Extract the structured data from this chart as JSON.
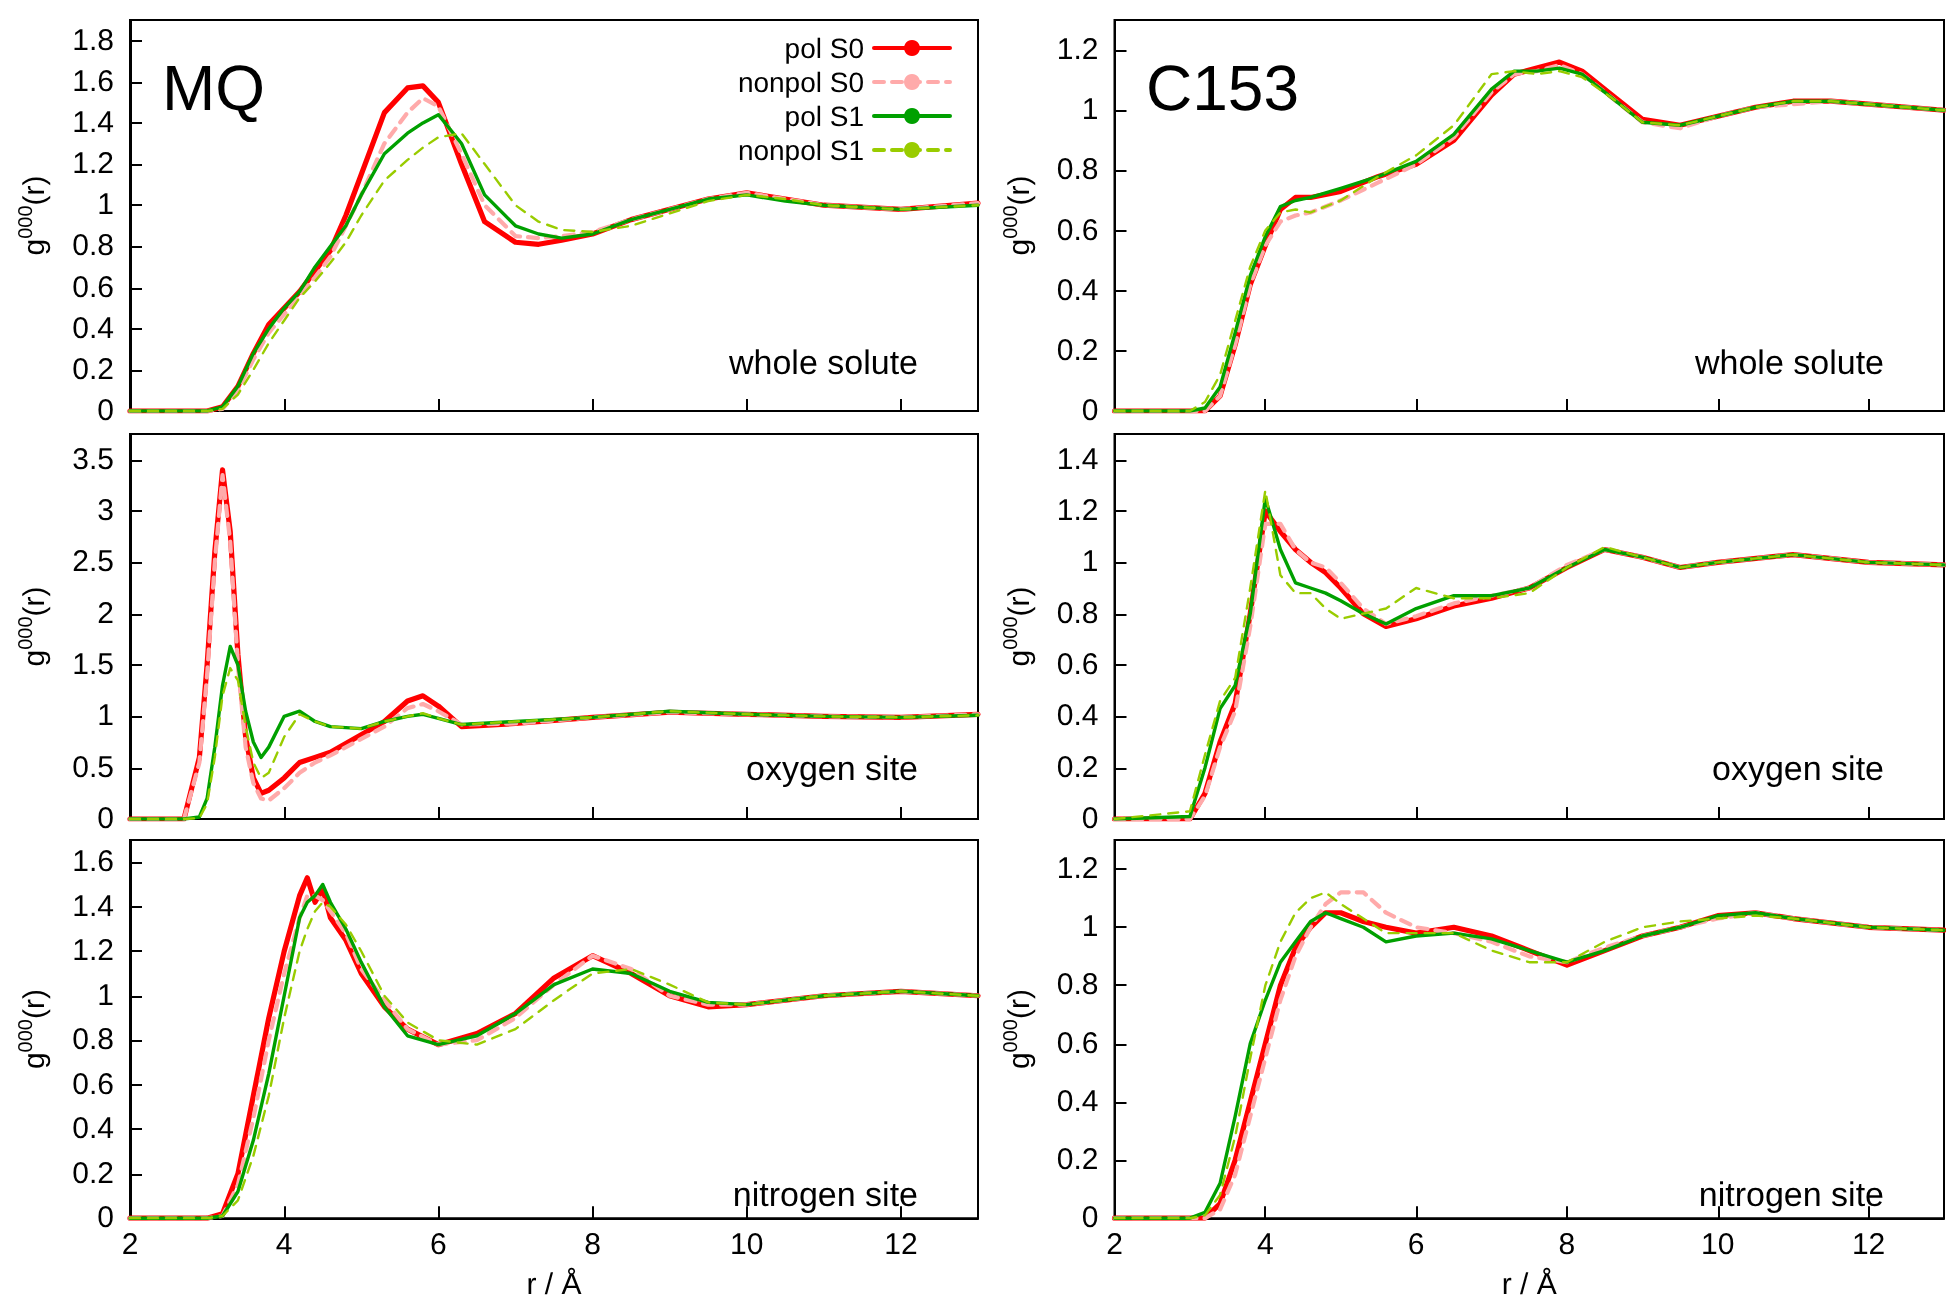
{
  "chart_data": [
    {
      "type": "line",
      "title": "MQ",
      "annotations": [
        "whole solute"
      ],
      "ylabel": "g$^{000}$(r)",
      "tick_labels": "y",
      "legend": "top right",
      "xlim": [
        2,
        13
      ],
      "xticks": [
        2,
        4,
        6,
        8,
        10,
        12
      ],
      "ylim": [
        0,
        1.9
      ],
      "yticks": [
        0,
        0.2,
        0.4,
        0.6,
        0.8,
        1,
        1.2,
        1.4,
        1.6,
        1.8
      ],
      "x": [
        2,
        3,
        3.2,
        3.4,
        3.6,
        3.8,
        4,
        4.2,
        4.4,
        4.6,
        4.8,
        5,
        5.3,
        5.6,
        5.8,
        6,
        6.3,
        6.6,
        7,
        7.3,
        7.6,
        8,
        8.5,
        9,
        9.5,
        10,
        10.5,
        11,
        12,
        13
      ],
      "series": [
        {
          "name": "pol S0",
          "color": "#ff0000",
          "line_style": "solid",
          "values": [
            0,
            0,
            0.02,
            0.12,
            0.28,
            0.42,
            0.5,
            0.58,
            0.68,
            0.78,
            0.95,
            1.15,
            1.45,
            1.57,
            1.58,
            1.5,
            1.2,
            0.92,
            0.82,
            0.81,
            0.83,
            0.86,
            0.93,
            0.98,
            1.03,
            1.06,
            1.03,
            1,
            0.98,
            1.01
          ]
        },
        {
          "name": "nonpol S0",
          "color": "#ffaaaa",
          "line_style": "dashed",
          "values": [
            0,
            0,
            0.01,
            0.1,
            0.25,
            0.38,
            0.47,
            0.56,
            0.65,
            0.75,
            0.9,
            1.05,
            1.3,
            1.45,
            1.52,
            1.48,
            1.25,
            1,
            0.85,
            0.84,
            0.85,
            0.87,
            0.93,
            0.98,
            1.03,
            1.06,
            1.03,
            1,
            0.98,
            1.01
          ]
        },
        {
          "name": "pol S1",
          "color": "#00a000",
          "line_style": "solid",
          "values": [
            0,
            0,
            0.02,
            0.12,
            0.28,
            0.4,
            0.5,
            0.58,
            0.7,
            0.8,
            0.9,
            1.05,
            1.25,
            1.35,
            1.4,
            1.44,
            1.3,
            1.05,
            0.9,
            0.86,
            0.84,
            0.86,
            0.93,
            0.98,
            1.03,
            1.05,
            1.02,
            1,
            0.98,
            1
          ]
        },
        {
          "name": "nonpol S1",
          "color": "#99cc00",
          "line_style": "dashed",
          "values": [
            0,
            0,
            0.01,
            0.08,
            0.2,
            0.33,
            0.44,
            0.55,
            0.63,
            0.72,
            0.82,
            0.95,
            1.12,
            1.22,
            1.28,
            1.33,
            1.35,
            1.2,
            1,
            0.92,
            0.88,
            0.87,
            0.9,
            0.96,
            1.02,
            1.05,
            1.03,
            1,
            0.98,
            1
          ]
        }
      ]
    },
    {
      "type": "line",
      "title": "C153",
      "annotations": [
        "whole solute"
      ],
      "ylabel": "g$^{000}$(r)",
      "tick_labels": "y",
      "xlim": [
        2,
        13
      ],
      "xticks": [
        2,
        4,
        6,
        8,
        10,
        12
      ],
      "ylim": [
        0,
        1.3
      ],
      "yticks": [
        0,
        0.2,
        0.4,
        0.6,
        0.8,
        1,
        1.2
      ],
      "x": [
        2,
        3,
        3.2,
        3.4,
        3.6,
        3.8,
        4,
        4.2,
        4.4,
        4.6,
        5,
        5.5,
        6,
        6.5,
        7,
        7.3,
        7.6,
        7.9,
        8.2,
        8.6,
        9,
        9.5,
        10,
        10.5,
        11,
        11.5,
        12,
        13
      ],
      "series": [
        {
          "color": "#ff0000",
          "line_style": "solid",
          "values": [
            0,
            0,
            0,
            0.05,
            0.22,
            0.42,
            0.55,
            0.67,
            0.71,
            0.71,
            0.73,
            0.78,
            0.82,
            0.9,
            1.05,
            1.12,
            1.14,
            1.16,
            1.13,
            1.05,
            0.97,
            0.95,
            0.98,
            1.01,
            1.03,
            1.03,
            1.02,
            1
          ]
        },
        {
          "color": "#ffaaaa",
          "line_style": "dashed",
          "values": [
            0,
            0,
            0,
            0.05,
            0.22,
            0.42,
            0.55,
            0.63,
            0.65,
            0.66,
            0.7,
            0.76,
            0.82,
            0.91,
            1.06,
            1.12,
            1.13,
            1.15,
            1.12,
            1.04,
            0.96,
            0.94,
            0.98,
            1.01,
            1.02,
            1.03,
            1.02,
            1
          ]
        },
        {
          "color": "#00a000",
          "line_style": "solid",
          "values": [
            0,
            0,
            0.01,
            0.08,
            0.26,
            0.45,
            0.58,
            0.68,
            0.7,
            0.71,
            0.74,
            0.78,
            0.83,
            0.92,
            1.07,
            1.13,
            1.13,
            1.14,
            1.12,
            1.04,
            0.96,
            0.95,
            0.98,
            1.01,
            1.03,
            1.03,
            1.02,
            1
          ]
        },
        {
          "color": "#99cc00",
          "line_style": "dashed",
          "values": [
            0,
            0,
            0.03,
            0.12,
            0.3,
            0.48,
            0.6,
            0.66,
            0.67,
            0.66,
            0.7,
            0.78,
            0.85,
            0.95,
            1.12,
            1.13,
            1.12,
            1.13,
            1.11,
            1.04,
            0.96,
            0.95,
            0.98,
            1.01,
            1.03,
            1.03,
            1.02,
            1
          ]
        }
      ]
    },
    {
      "type": "line",
      "annotations": [
        "oxygen site"
      ],
      "ylabel": "g$^{000}$(r)",
      "tick_labels": "y",
      "xlim": [
        2,
        13
      ],
      "xticks": [
        2,
        4,
        6,
        8,
        10,
        12
      ],
      "ylim": [
        0,
        3.75
      ],
      "yticks": [
        0,
        0.5,
        1,
        1.5,
        2,
        2.5,
        3,
        3.5
      ],
      "x": [
        2,
        2.7,
        2.9,
        3,
        3.1,
        3.2,
        3.3,
        3.4,
        3.5,
        3.6,
        3.7,
        3.8,
        4,
        4.2,
        4.4,
        4.6,
        5,
        5.3,
        5.6,
        5.8,
        6,
        6.3,
        7,
        8,
        9,
        10,
        11,
        12,
        13
      ],
      "series": [
        {
          "color": "#ff0000",
          "line_style": "solid",
          "values": [
            0,
            0,
            0.6,
            1.5,
            2.6,
            3.4,
            2.8,
            1.6,
            0.8,
            0.4,
            0.25,
            0.28,
            0.4,
            0.55,
            0.6,
            0.65,
            0.82,
            0.95,
            1.15,
            1.2,
            1.1,
            0.9,
            0.93,
            0.99,
            1.04,
            1.02,
            1,
            0.99,
            1.02
          ]
        },
        {
          "color": "#ffaaaa",
          "line_style": "dashed",
          "values": [
            0,
            0,
            0.55,
            1.4,
            2.5,
            3.35,
            2.7,
            1.5,
            0.7,
            0.35,
            0.2,
            0.18,
            0.3,
            0.45,
            0.55,
            0.62,
            0.78,
            0.9,
            1.08,
            1.12,
            1.05,
            0.92,
            0.93,
            0.99,
            1.04,
            1.02,
            1,
            0.99,
            1.02
          ]
        },
        {
          "color": "#00a000",
          "line_style": "solid",
          "values": [
            0,
            0,
            0.02,
            0.2,
            0.7,
            1.3,
            1.68,
            1.5,
            1.05,
            0.75,
            0.6,
            0.7,
            1,
            1.05,
            0.95,
            0.9,
            0.88,
            0.95,
            1,
            1.02,
            0.98,
            0.92,
            0.95,
            0.99,
            1.05,
            1.02,
            1,
            0.99,
            1.01
          ]
        },
        {
          "color": "#99cc00",
          "line_style": "dashed",
          "values": [
            0,
            0,
            0.01,
            0.15,
            0.6,
            1.2,
            1.47,
            1.35,
            0.9,
            0.55,
            0.4,
            0.45,
            0.8,
            1.02,
            0.95,
            0.9,
            0.88,
            0.95,
            1,
            1.03,
            0.98,
            0.92,
            0.95,
            0.99,
            1.05,
            1.02,
            1,
            0.99,
            1.01
          ]
        }
      ]
    },
    {
      "type": "line",
      "annotations": [
        "oxygen site"
      ],
      "ylabel": "g$^{000}$(r)",
      "tick_labels": "y",
      "xlim": [
        2,
        13
      ],
      "xticks": [
        2,
        4,
        6,
        8,
        10,
        12
      ],
      "ylim": [
        0,
        1.5
      ],
      "yticks": [
        0,
        0.2,
        0.4,
        0.6,
        0.8,
        1,
        1.2,
        1.4
      ],
      "x": [
        2,
        3,
        3.2,
        3.4,
        3.6,
        3.8,
        4,
        4.2,
        4.4,
        4.6,
        4.8,
        5,
        5.3,
        5.6,
        6,
        6.5,
        7,
        7.5,
        8,
        8.5,
        9,
        9.5,
        10,
        11,
        12,
        13
      ],
      "series": [
        {
          "color": "#ff0000",
          "line_style": "solid",
          "values": [
            0,
            0,
            0.1,
            0.3,
            0.45,
            0.8,
            1.2,
            1.12,
            1.05,
            1,
            0.96,
            0.9,
            0.8,
            0.75,
            0.78,
            0.83,
            0.86,
            0.9,
            0.98,
            1.05,
            1.02,
            0.98,
            1,
            1.03,
            1,
            0.99
          ]
        },
        {
          "color": "#ffaaaa",
          "line_style": "dashed",
          "values": [
            0,
            0,
            0.09,
            0.28,
            0.42,
            0.75,
            1.15,
            1.15,
            1.05,
            1,
            0.98,
            0.92,
            0.82,
            0.76,
            0.79,
            0.84,
            0.87,
            0.9,
            0.99,
            1.05,
            1.02,
            0.98,
            1,
            1.03,
            1,
            0.99
          ]
        },
        {
          "color": "#00a000",
          "line_style": "solid",
          "values": [
            0,
            0.01,
            0.2,
            0.43,
            0.52,
            0.8,
            1.25,
            1.05,
            0.92,
            0.9,
            0.88,
            0.85,
            0.8,
            0.76,
            0.82,
            0.87,
            0.87,
            0.9,
            0.98,
            1.05,
            1.02,
            0.98,
            1,
            1.03,
            1,
            0.99
          ]
        },
        {
          "color": "#99cc00",
          "line_style": "dashed",
          "values": [
            0,
            0.03,
            0.25,
            0.46,
            0.55,
            0.9,
            1.28,
            0.95,
            0.88,
            0.88,
            0.82,
            0.78,
            0.8,
            0.82,
            0.9,
            0.86,
            0.86,
            0.88,
            0.98,
            1.06,
            1.02,
            0.98,
            1,
            1.03,
            1,
            0.99
          ]
        }
      ]
    },
    {
      "type": "line",
      "annotations": [
        "nitrogen site"
      ],
      "ylabel": "g$^{000}$(r)",
      "xlabel": "r / Å",
      "xlim": [
        2,
        13
      ],
      "xticks": [
        2,
        4,
        6,
        8,
        10,
        12
      ],
      "ylim": [
        0,
        1.7
      ],
      "yticks": [
        0,
        0.2,
        0.4,
        0.6,
        0.8,
        1,
        1.2,
        1.4,
        1.6
      ],
      "x": [
        2,
        3,
        3.2,
        3.4,
        3.6,
        3.8,
        4,
        4.2,
        4.3,
        4.4,
        4.5,
        4.6,
        4.8,
        5,
        5.3,
        5.6,
        6,
        6.5,
        7,
        7.5,
        8,
        8.5,
        9,
        9.5,
        10,
        11,
        12,
        13
      ],
      "series": [
        {
          "color": "#ff0000",
          "line_style": "solid",
          "values": [
            0,
            0,
            0.02,
            0.2,
            0.55,
            0.9,
            1.2,
            1.45,
            1.53,
            1.42,
            1.48,
            1.35,
            1.25,
            1.1,
            0.95,
            0.85,
            0.78,
            0.83,
            0.92,
            1.08,
            1.18,
            1.1,
            1,
            0.95,
            0.96,
            1,
            1.02,
            1
          ]
        },
        {
          "color": "#ffaaaa",
          "line_style": "dashed",
          "values": [
            0,
            0,
            0.01,
            0.15,
            0.45,
            0.8,
            1.1,
            1.35,
            1.45,
            1.45,
            1.43,
            1.38,
            1.28,
            1.12,
            0.98,
            0.85,
            0.78,
            0.8,
            0.9,
            1.05,
            1.18,
            1.12,
            1,
            0.96,
            0.96,
            1,
            1.02,
            1
          ]
        },
        {
          "color": "#00a000",
          "line_style": "solid",
          "values": [
            0,
            0,
            0.01,
            0.12,
            0.35,
            0.65,
            1,
            1.35,
            1.42,
            1.45,
            1.5,
            1.42,
            1.3,
            1.15,
            0.95,
            0.82,
            0.78,
            0.82,
            0.92,
            1.05,
            1.12,
            1.1,
            1.02,
            0.97,
            0.96,
            1,
            1.02,
            1
          ]
        },
        {
          "color": "#99cc00",
          "line_style": "dashed",
          "values": [
            0,
            0,
            0.01,
            0.08,
            0.28,
            0.55,
            0.9,
            1.2,
            1.3,
            1.38,
            1.42,
            1.4,
            1.32,
            1.2,
            1,
            0.88,
            0.8,
            0.78,
            0.85,
            0.98,
            1.1,
            1.12,
            1.05,
            0.97,
            0.96,
            1,
            1.02,
            1
          ]
        }
      ]
    },
    {
      "type": "line",
      "annotations": [
        "nitrogen site"
      ],
      "ylabel": "g$^{000}$(r)",
      "xlabel": "r / Å",
      "xlim": [
        2,
        13
      ],
      "xticks": [
        2,
        4,
        6,
        8,
        10,
        12
      ],
      "ylim": [
        0,
        1.3
      ],
      "yticks": [
        0,
        0.2,
        0.4,
        0.6,
        0.8,
        1,
        1.2
      ],
      "x": [
        2,
        3,
        3.2,
        3.4,
        3.6,
        3.8,
        4,
        4.2,
        4.4,
        4.6,
        4.8,
        5,
        5.3,
        5.6,
        6,
        6.5,
        7,
        7.5,
        8,
        8.5,
        9,
        9.5,
        10,
        10.5,
        11,
        12,
        13
      ],
      "series": [
        {
          "color": "#ff0000",
          "line_style": "solid",
          "values": [
            0,
            0,
            0,
            0.05,
            0.2,
            0.4,
            0.6,
            0.8,
            0.93,
            1,
            1.05,
            1.05,
            1.02,
            1,
            0.98,
            1,
            0.97,
            0.92,
            0.87,
            0.92,
            0.97,
            1,
            1.04,
            1.05,
            1.03,
            1,
            0.99
          ]
        },
        {
          "color": "#ffaaaa",
          "line_style": "dashed",
          "values": [
            0,
            0,
            0,
            0.03,
            0.15,
            0.35,
            0.55,
            0.75,
            0.9,
            1,
            1.08,
            1.12,
            1.12,
            1.05,
            1,
            0.98,
            0.95,
            0.9,
            0.88,
            0.93,
            0.97,
            1,
            1.03,
            1.05,
            1.03,
            1,
            0.99
          ]
        },
        {
          "color": "#00a000",
          "line_style": "solid",
          "values": [
            0,
            0,
            0.02,
            0.12,
            0.35,
            0.6,
            0.75,
            0.88,
            0.95,
            1.02,
            1.05,
            1.03,
            1,
            0.95,
            0.97,
            0.98,
            0.96,
            0.92,
            0.88,
            0.92,
            0.97,
            1,
            1.04,
            1.05,
            1.03,
            1,
            0.99
          ]
        },
        {
          "color": "#99cc00",
          "line_style": "dashed",
          "values": [
            0,
            0,
            0.01,
            0.08,
            0.28,
            0.55,
            0.8,
            0.95,
            1.05,
            1.1,
            1.12,
            1.08,
            1.03,
            0.98,
            0.98,
            0.98,
            0.92,
            0.88,
            0.88,
            0.95,
            1,
            1.02,
            1.03,
            1.04,
            1.03,
            1,
            0.99
          ]
        }
      ]
    }
  ]
}
